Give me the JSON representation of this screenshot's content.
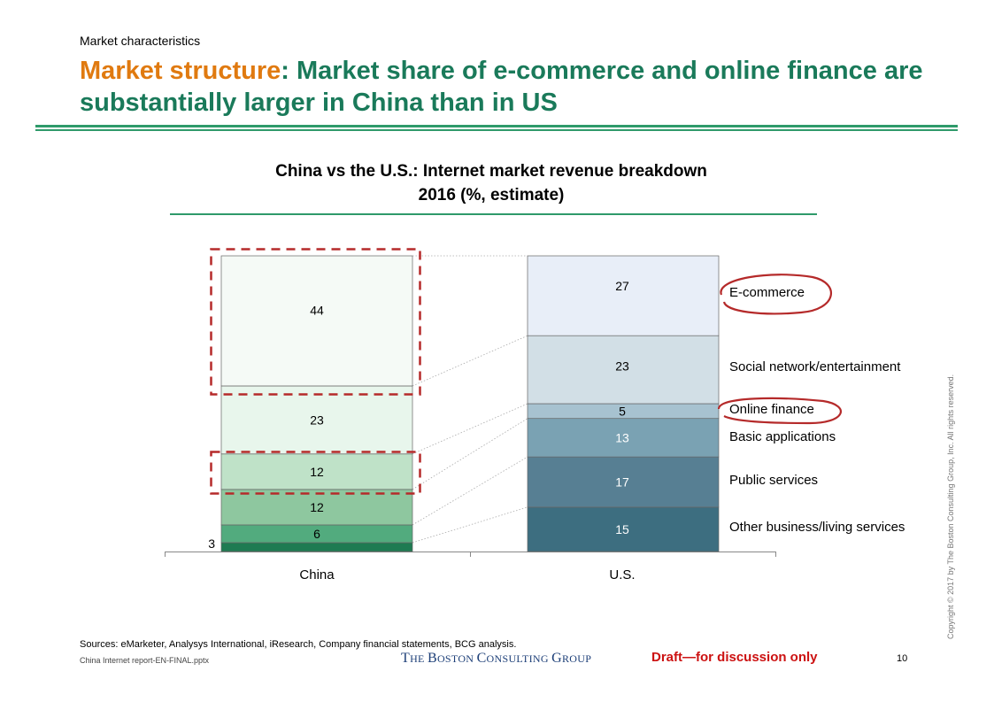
{
  "header": {
    "kicker": "Market characteristics",
    "title_accent": "Market structure",
    "title_rest": ": Market share of e-commerce and online finance are substantially larger in China than in US"
  },
  "chart_data": {
    "type": "bar",
    "stacked": true,
    "title": "China vs the U.S.: Internet market revenue breakdown 2016 (%, estimate)",
    "categories": [
      "China",
      "U.S."
    ],
    "ylim": [
      0,
      100
    ],
    "series": [
      {
        "name": "Other business/living services",
        "values": [
          3,
          15
        ],
        "colors": [
          "#1e7b52",
          "#3d6e80"
        ]
      },
      {
        "name": "Public services",
        "values": [
          6,
          17
        ],
        "colors": [
          "#52ab7e",
          "#577f93"
        ]
      },
      {
        "name": "Basic applications",
        "values": [
          12,
          13
        ],
        "colors": [
          "#8ec79f",
          "#7aa2b3"
        ]
      },
      {
        "name": "Online finance",
        "values": [
          12,
          5
        ],
        "colors": [
          "#bfe2c8",
          "#a7c2d0"
        ]
      },
      {
        "name": "Social network/entertainment",
        "values": [
          23,
          23
        ],
        "colors": [
          "#e8f6ec",
          "#d2dfe6"
        ]
      },
      {
        "name": "E-commerce",
        "values": [
          44,
          27
        ],
        "colors": [
          "#f5faf6",
          "#e8eef8"
        ]
      }
    ],
    "grid": false,
    "legend": "right of U.S. bar"
  },
  "footer": {
    "sources": "Sources: eMarketer, Analysys International, iResearch, Company financial statements, BCG analysis.",
    "filename": "China Internet report-EN-FINAL.pptx",
    "logo_the": "T",
    "logo_the_sc": "HE ",
    "logo_boston": "B",
    "logo_boston_sc": "OSTON ",
    "logo_consulting": "C",
    "logo_consulting_sc": "ONSULTING ",
    "logo_group": "G",
    "logo_group_sc": "ROUP",
    "draft": "Draft—for discussion only",
    "page": "10",
    "copyright": "Copyright © 2017 by The Boston Consulting Group, Inc. All rights reserved."
  },
  "colors": {
    "title_green": "#1a7a5a",
    "title_orange": "#e07a10",
    "highlight_red": "#b52a2a",
    "draft_red": "#cc1111"
  }
}
